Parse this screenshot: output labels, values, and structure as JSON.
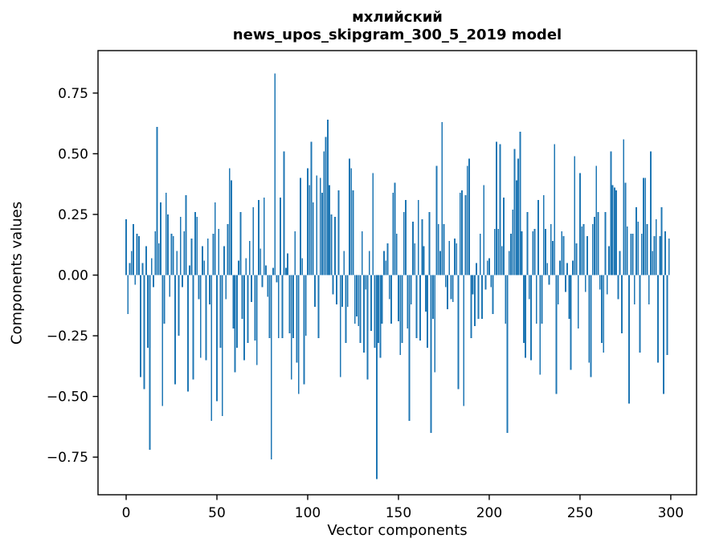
{
  "chart_data": {
    "type": "bar",
    "title_lines": [
      "мхлийский",
      "news_upos_skipgram_300_5_2019 model"
    ],
    "xlabel": "Vector components",
    "ylabel": "Components values",
    "legend": null,
    "grid": false,
    "bar_color": "#1f77b4",
    "axis_color": "#000000",
    "background_color": "#ffffff",
    "xlim": [
      -15.5,
      314.2
    ],
    "ylim": [
      -0.905,
      0.925
    ],
    "xticks": [
      0,
      50,
      100,
      150,
      200,
      250,
      300
    ],
    "xtick_labels": [
      "0",
      "50",
      "100",
      "150",
      "200",
      "250",
      "300"
    ],
    "yticks": [
      -0.75,
      -0.5,
      -0.25,
      0,
      0.25,
      0.5,
      0.75
    ],
    "ytick_labels": [
      "−0.75",
      "−0.50",
      "−0.25",
      "0.00",
      "0.25",
      "0.50",
      "0.75"
    ],
    "n_components": 300,
    "values": [
      0.23,
      -0.16,
      0.05,
      0.1,
      0.21,
      -0.04,
      0.17,
      0.16,
      -0.42,
      0.05,
      -0.47,
      0.12,
      -0.3,
      -0.72,
      0.07,
      -0.05,
      0.18,
      0.61,
      0.13,
      0.3,
      -0.54,
      -0.2,
      0.34,
      0.25,
      -0.09,
      0.17,
      0.16,
      -0.45,
      0.1,
      -0.25,
      0.24,
      -0.05,
      0.18,
      0.33,
      -0.48,
      0.04,
      0.15,
      -0.43,
      0.26,
      0.24,
      -0.1,
      -0.34,
      0.12,
      0.06,
      -0.35,
      0.15,
      -0.12,
      -0.6,
      0.17,
      0.3,
      -0.52,
      0.19,
      -0.3,
      -0.58,
      0.12,
      -0.1,
      0.21,
      0.44,
      0.39,
      -0.22,
      -0.4,
      -0.3,
      0.06,
      0.26,
      -0.18,
      -0.35,
      0.07,
      -0.28,
      0.14,
      -0.11,
      0.28,
      -0.27,
      -0.37,
      0.31,
      0.11,
      -0.05,
      0.32,
      0.04,
      -0.09,
      -0.26,
      -0.76,
      0.03,
      0.83,
      -0.03,
      -0.26,
      0.32,
      -0.26,
      0.51,
      0.03,
      0.09,
      -0.24,
      -0.43,
      -0.26,
      0.18,
      -0.36,
      -0.49,
      0.4,
      0.07,
      -0.45,
      -0.25,
      0.44,
      0.37,
      0.55,
      0.3,
      -0.13,
      0.41,
      -0.26,
      0.4,
      0.34,
      0.51,
      0.57,
      0.64,
      0.37,
      0.25,
      -0.08,
      0.24,
      -0.12,
      0.35,
      -0.42,
      -0.13,
      0.1,
      -0.28,
      -0.13,
      0.48,
      0.44,
      0.35,
      -0.2,
      -0.17,
      -0.21,
      -0.28,
      0.18,
      -0.32,
      -0.06,
      -0.43,
      0.1,
      -0.23,
      0.42,
      -0.3,
      -0.84,
      -0.28,
      -0.34,
      -0.2,
      0.1,
      0.06,
      0.13,
      -0.1,
      -0.2,
      0.34,
      0.38,
      0.17,
      -0.19,
      -0.33,
      -0.28,
      0.26,
      0.31,
      -0.22,
      -0.6,
      -0.12,
      0.22,
      0.13,
      -0.26,
      0.31,
      -0.27,
      0.23,
      0.12,
      -0.15,
      -0.3,
      0.26,
      -0.65,
      -0.18,
      -0.4,
      0.45,
      0.21,
      0.1,
      0.63,
      0.21,
      -0.05,
      -0.14,
      0.14,
      -0.1,
      -0.11,
      0.15,
      0.13,
      -0.47,
      0.34,
      0.35,
      -0.54,
      0.33,
      0.45,
      0.48,
      -0.26,
      -0.08,
      -0.21,
      0.05,
      -0.18,
      0.17,
      -0.18,
      0.37,
      -0.06,
      0.06,
      0.07,
      -0.05,
      -0.16,
      0.19,
      0.55,
      0.19,
      0.54,
      0.12,
      0.32,
      -0.2,
      -0.65,
      0.1,
      0.17,
      0.27,
      0.52,
      0.39,
      0.48,
      0.59,
      0.18,
      -0.28,
      -0.34,
      0.26,
      -0.1,
      -0.35,
      0.18,
      0.19,
      -0.2,
      0.31,
      -0.41,
      -0.2,
      0.33,
      0.19,
      0.05,
      -0.04,
      0.21,
      0.14,
      0.54,
      -0.49,
      -0.12,
      0.06,
      0.18,
      0.16,
      -0.07,
      0.05,
      -0.18,
      -0.39,
      0.06,
      0.49,
      0.13,
      -0.22,
      0.42,
      0.2,
      0.21,
      -0.07,
      0.16,
      -0.36,
      -0.42,
      0.21,
      0.24,
      0.45,
      0.26,
      -0.06,
      -0.28,
      -0.32,
      0.26,
      -0.08,
      0.12,
      0.51,
      0.37,
      0.36,
      0.35,
      -0.1,
      0.1,
      -0.24,
      0.56,
      0.38,
      0.2,
      -0.53,
      0.17,
      0.17,
      -0.12,
      0.28,
      0.22,
      -0.32,
      0.17,
      0.4,
      0.4,
      0.21,
      -0.12,
      0.51,
      0.1,
      0.16,
      0.23,
      -0.36,
      0.16,
      0.28,
      -0.49,
      0.18,
      -0.33,
      0.15
    ]
  }
}
